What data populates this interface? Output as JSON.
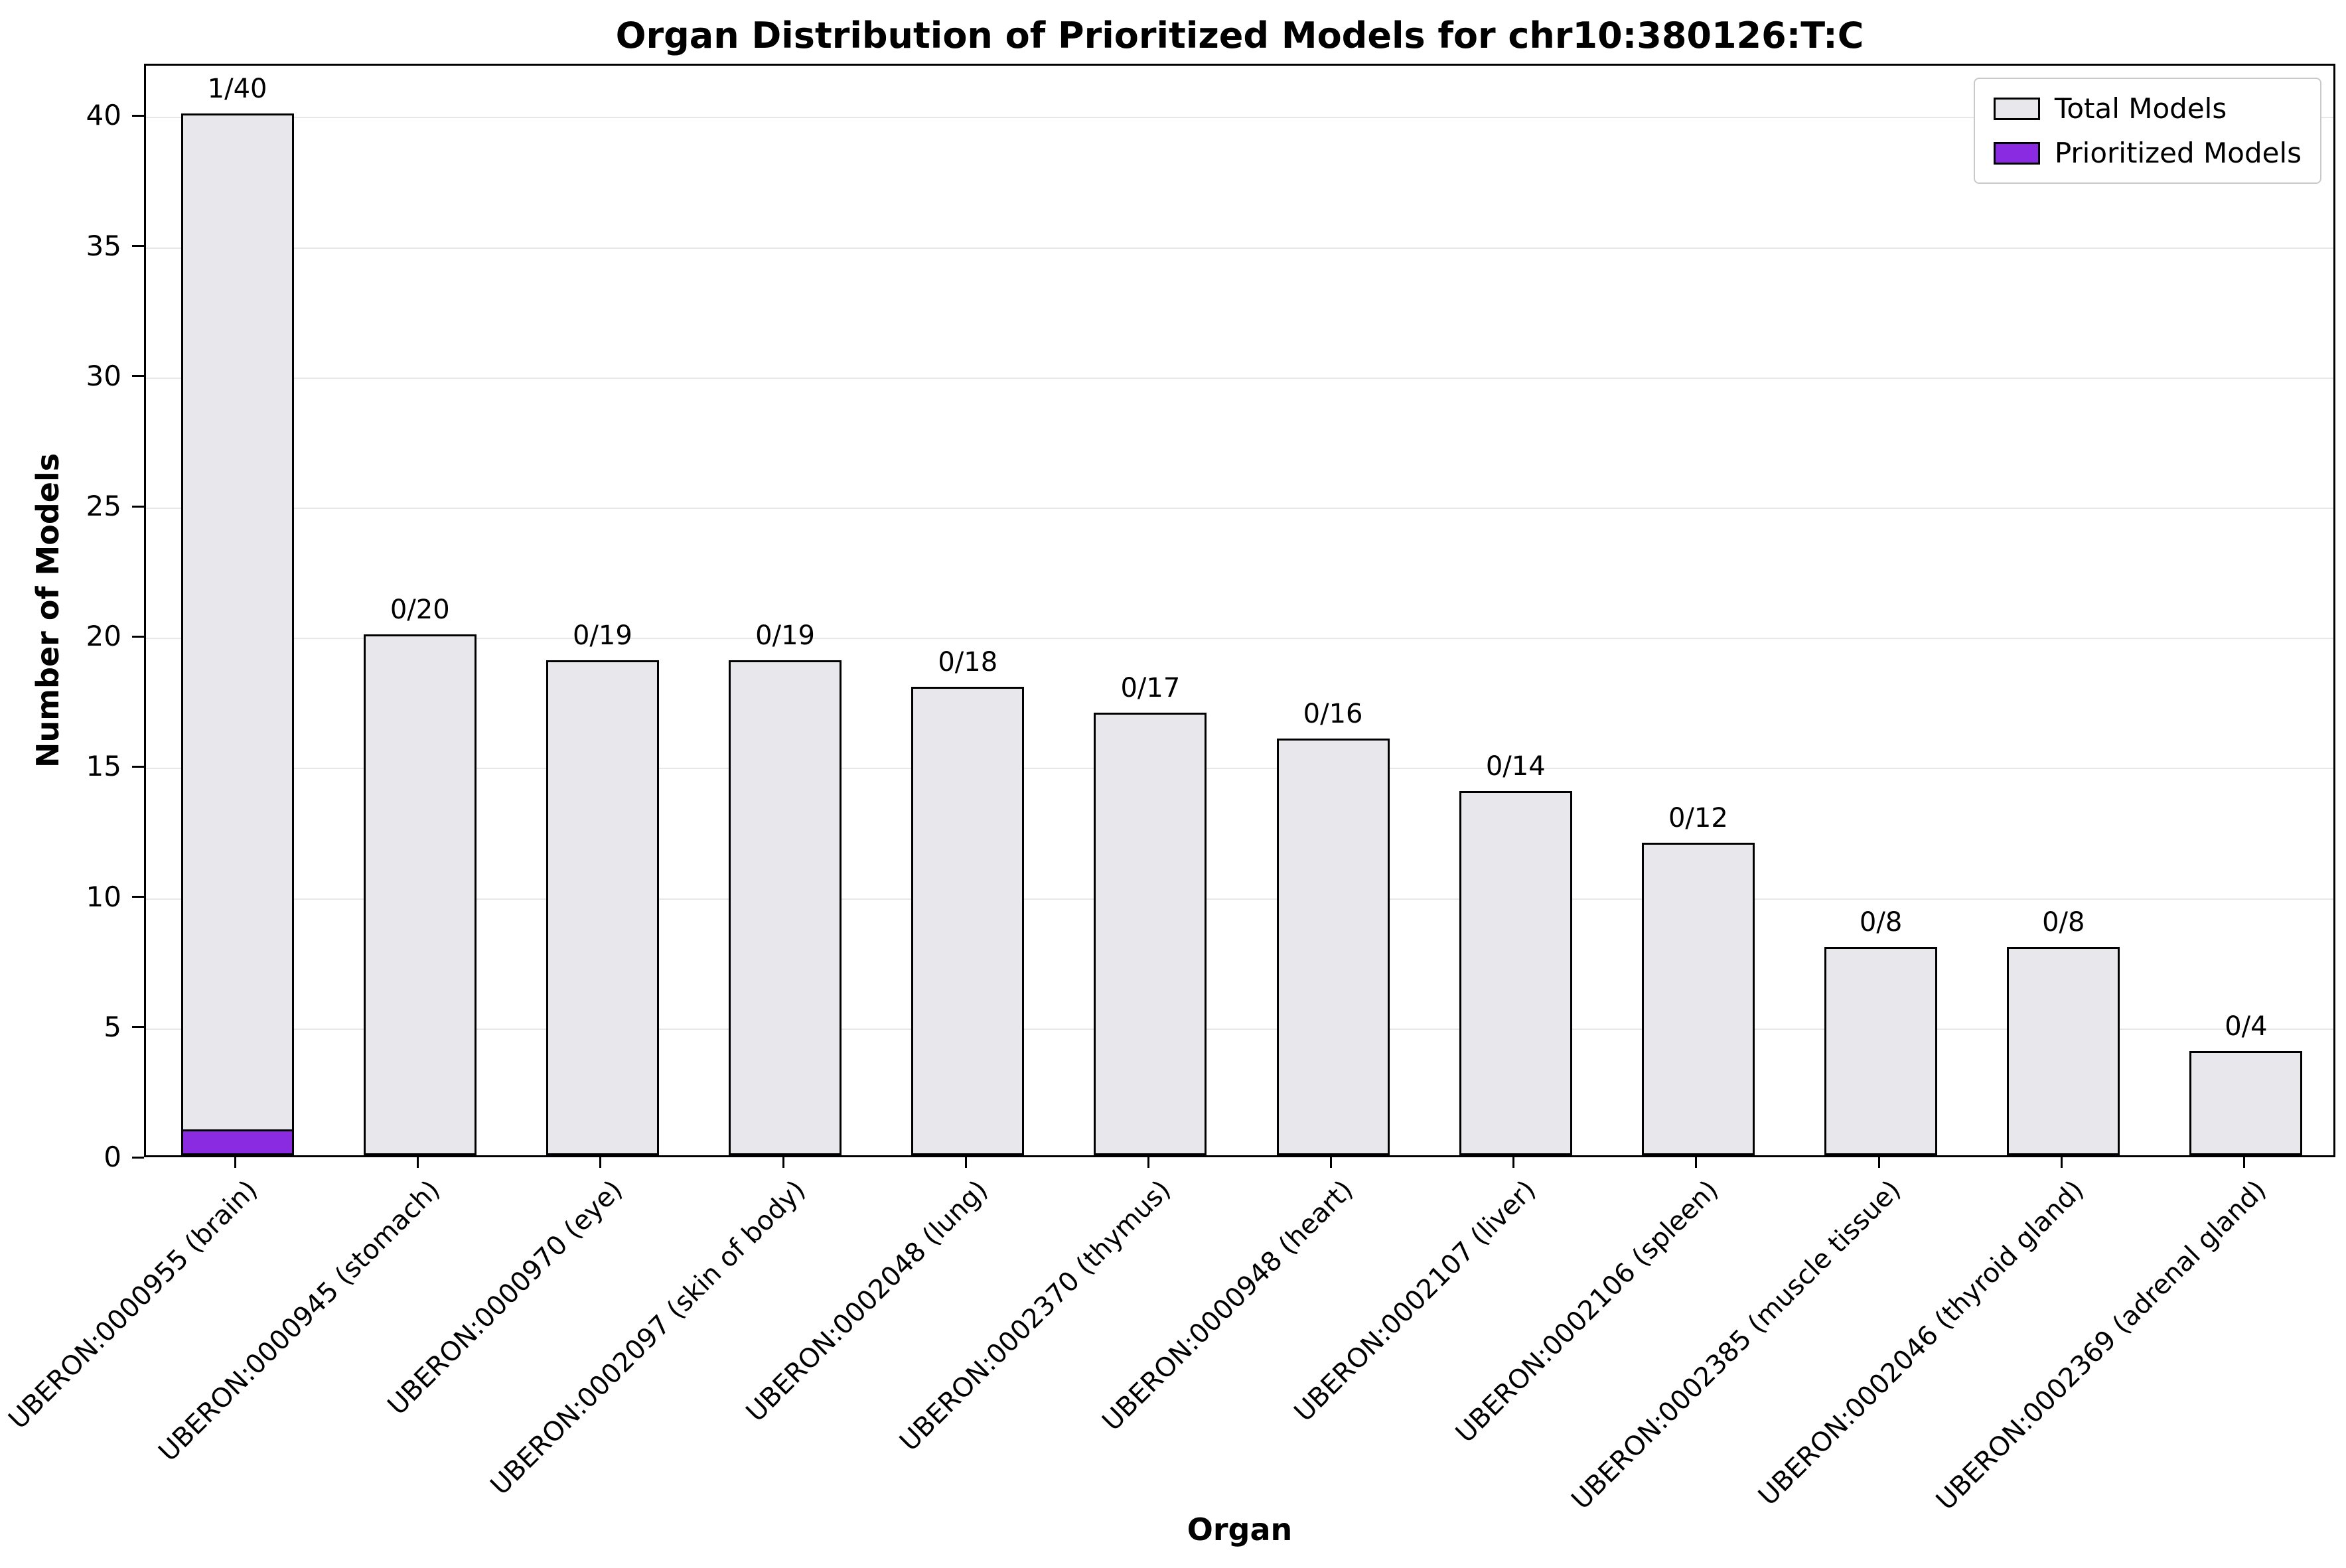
{
  "chart_data": {
    "type": "bar",
    "title": "Organ Distribution of Prioritized Models for chr10:380126:T:C",
    "xlabel": "Organ",
    "ylabel": "Number of Models",
    "ylim": [
      0,
      42
    ],
    "yticks": [
      0,
      5,
      10,
      15,
      20,
      25,
      30,
      35,
      40
    ],
    "grid": true,
    "legend_position": "upper right",
    "categories": [
      "UBERON:0000955 (brain)",
      "UBERON:0000945 (stomach)",
      "UBERON:0000970 (eye)",
      "UBERON:0002097 (skin of body)",
      "UBERON:0002048 (lung)",
      "UBERON:0002370 (thymus)",
      "UBERON:0000948 (heart)",
      "UBERON:0002107 (liver)",
      "UBERON:0002106 (spleen)",
      "UBERON:0002385 (muscle tissue)",
      "UBERON:0002046 (thyroid gland)",
      "UBERON:0002369 (adrenal gland)"
    ],
    "series": [
      {
        "name": "Total Models",
        "color": "#e8e8ec",
        "values": [
          40,
          20,
          19,
          19,
          18,
          17,
          16,
          14,
          12,
          8,
          8,
          4
        ]
      },
      {
        "name": "Prioritized Models",
        "color": "#8a2be2",
        "values": [
          1,
          0,
          0,
          0,
          0,
          0,
          0,
          0,
          0,
          0,
          0,
          0
        ]
      }
    ],
    "bar_labels": [
      "1/40",
      "0/20",
      "0/19",
      "0/19",
      "0/18",
      "0/17",
      "0/16",
      "0/14",
      "0/12",
      "0/8",
      "0/8",
      "0/4"
    ]
  },
  "colors": {
    "bar_edge": "#000000",
    "grid": "#e7e7e7",
    "axis": "#000000",
    "legend_border": "#c9c9c9"
  }
}
